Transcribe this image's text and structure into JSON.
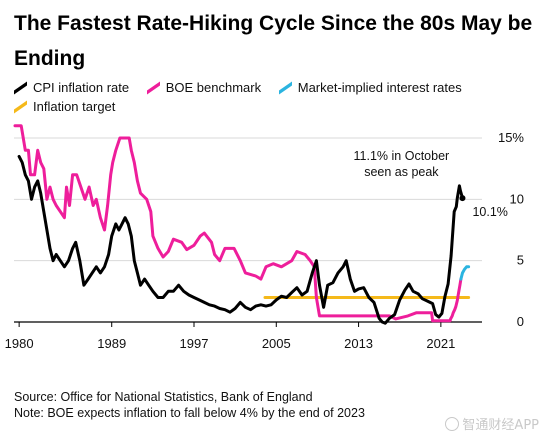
{
  "title": "The Fastest Rate-Hiking Cycle Since the 80s May be Ending",
  "legend": [
    {
      "label": "CPI inflation rate",
      "color": "#000000"
    },
    {
      "label": "BOE benchmark",
      "color": "#ee1e9b"
    },
    {
      "label": "Market-implied interest rates",
      "color": "#2bb4e0"
    },
    {
      "label": "Inflation target",
      "color": "#f5b91a"
    }
  ],
  "source": "Source: Office for National Statistics, Bank of England",
  "note": "Note: BOE expects inflation to fall below 4% by the end of 2023",
  "watermark": "智通财经APP",
  "chart_data": {
    "type": "line",
    "title": "The Fastest Rate-Hiking Cycle Since the 80s May be Ending",
    "xlabel": "",
    "ylabel": "",
    "xlim": [
      1979.5,
      2025
    ],
    "ylim": [
      0,
      15
    ],
    "x_ticks": [
      1980,
      1989,
      1997,
      2005,
      2013,
      2021
    ],
    "y_ticks": [
      0,
      5,
      10,
      15
    ],
    "y_tick_labels": [
      "0",
      "5",
      "10",
      "15%"
    ],
    "grid": "horizontal",
    "annotations": [
      {
        "text": "11.1% in October seen as peak",
        "x": 2022.8,
        "y": 11.1
      },
      {
        "text": "10.1%",
        "x": 2023.1,
        "y": 10.1
      }
    ],
    "series": [
      {
        "name": "CPI inflation rate",
        "color": "#000000",
        "points": [
          [
            1980,
            13.5
          ],
          [
            1980.3,
            13
          ],
          [
            1980.6,
            12
          ],
          [
            1980.9,
            11.5
          ],
          [
            1981.2,
            10
          ],
          [
            1981.5,
            11
          ],
          [
            1981.8,
            11.5
          ],
          [
            1982.1,
            10.5
          ],
          [
            1982.4,
            9
          ],
          [
            1982.7,
            7.5
          ],
          [
            1983,
            6
          ],
          [
            1983.3,
            5
          ],
          [
            1983.6,
            5.5
          ],
          [
            1984,
            5
          ],
          [
            1984.4,
            4.5
          ],
          [
            1984.8,
            5
          ],
          [
            1985.2,
            6
          ],
          [
            1985.5,
            6.5
          ],
          [
            1985.9,
            5
          ],
          [
            1986.3,
            3
          ],
          [
            1986.7,
            3.5
          ],
          [
            1987.1,
            4
          ],
          [
            1987.5,
            4.5
          ],
          [
            1987.9,
            4
          ],
          [
            1988.3,
            4.5
          ],
          [
            1988.7,
            5.5
          ],
          [
            1989,
            7
          ],
          [
            1989.4,
            8
          ],
          [
            1989.7,
            7.5
          ],
          [
            1990,
            8
          ],
          [
            1990.3,
            8.5
          ],
          [
            1990.6,
            8
          ],
          [
            1990.9,
            7
          ],
          [
            1991.2,
            5
          ],
          [
            1991.5,
            4
          ],
          [
            1991.8,
            3
          ],
          [
            1992.2,
            3.5
          ],
          [
            1992.6,
            3
          ],
          [
            1993,
            2.5
          ],
          [
            1993.5,
            2
          ],
          [
            1994,
            2
          ],
          [
            1994.5,
            2.5
          ],
          [
            1995,
            2.5
          ],
          [
            1995.5,
            3
          ],
          [
            1996,
            2.5
          ],
          [
            1996.5,
            2.2
          ],
          [
            1997,
            2
          ],
          [
            1997.5,
            1.8
          ],
          [
            1998,
            1.6
          ],
          [
            1998.5,
            1.4
          ],
          [
            1999,
            1.3
          ],
          [
            1999.5,
            1.1
          ],
          [
            2000,
            1.0
          ],
          [
            2000.5,
            0.8
          ],
          [
            2001,
            1.1
          ],
          [
            2001.5,
            1.6
          ],
          [
            2002,
            1.2
          ],
          [
            2002.5,
            1.0
          ],
          [
            2003,
            1.3
          ],
          [
            2003.5,
            1.4
          ],
          [
            2004,
            1.3
          ],
          [
            2004.5,
            1.4
          ],
          [
            2005,
            1.8
          ],
          [
            2005.5,
            2.1
          ],
          [
            2006,
            2.0
          ],
          [
            2006.5,
            2.4
          ],
          [
            2007,
            2.8
          ],
          [
            2007.5,
            2.2
          ],
          [
            2008,
            2.5
          ],
          [
            2008.5,
            4.0
          ],
          [
            2008.9,
            5.0
          ],
          [
            2009.2,
            3.0
          ],
          [
            2009.6,
            1.2
          ],
          [
            2010,
            3.0
          ],
          [
            2010.5,
            3.2
          ],
          [
            2011,
            4.0
          ],
          [
            2011.5,
            4.5
          ],
          [
            2011.8,
            5.0
          ],
          [
            2012.2,
            3.5
          ],
          [
            2012.6,
            2.5
          ],
          [
            2013,
            2.7
          ],
          [
            2013.5,
            2.8
          ],
          [
            2014,
            2.0
          ],
          [
            2014.5,
            1.6
          ],
          [
            2015,
            0.3
          ],
          [
            2015.3,
            0
          ],
          [
            2015.6,
            -0.1
          ],
          [
            2016,
            0.3
          ],
          [
            2016.5,
            0.6
          ],
          [
            2017,
            1.8
          ],
          [
            2017.5,
            2.6
          ],
          [
            2017.9,
            3.1
          ],
          [
            2018.3,
            2.5
          ],
          [
            2018.8,
            2.3
          ],
          [
            2019.2,
            1.9
          ],
          [
            2019.7,
            1.7
          ],
          [
            2020.2,
            1.5
          ],
          [
            2020.5,
            0.6
          ],
          [
            2020.8,
            0.4
          ],
          [
            2021.1,
            0.7
          ],
          [
            2021.4,
            2.1
          ],
          [
            2021.7,
            3.1
          ],
          [
            2022,
            5.4
          ],
          [
            2022.3,
            9.0
          ],
          [
            2022.5,
            9.4
          ],
          [
            2022.6,
            10.1
          ],
          [
            2022.8,
            11.1
          ],
          [
            2022.9,
            10.7
          ],
          [
            2023.1,
            10.1
          ]
        ]
      },
      {
        "name": "BOE benchmark",
        "color": "#ee1e9b",
        "points": [
          [
            1979.6,
            16
          ],
          [
            1980,
            16
          ],
          [
            1980.2,
            16
          ],
          [
            1980.6,
            14
          ],
          [
            1980.9,
            14
          ],
          [
            1981.1,
            12
          ],
          [
            1981.5,
            12
          ],
          [
            1981.8,
            14
          ],
          [
            1982.1,
            13
          ],
          [
            1982.4,
            12.5
          ],
          [
            1982.7,
            10
          ],
          [
            1983,
            11
          ],
          [
            1983.3,
            10
          ],
          [
            1983.6,
            9.5
          ],
          [
            1984,
            9
          ],
          [
            1984.4,
            8.5
          ],
          [
            1984.6,
            11
          ],
          [
            1984.9,
            9.5
          ],
          [
            1985.2,
            12
          ],
          [
            1985.6,
            12
          ],
          [
            1986,
            11
          ],
          [
            1986.4,
            10
          ],
          [
            1986.8,
            11
          ],
          [
            1987.2,
            9.5
          ],
          [
            1987.5,
            10
          ],
          [
            1987.9,
            8.5
          ],
          [
            1988.3,
            7.5
          ],
          [
            1988.6,
            9.5
          ],
          [
            1988.9,
            12
          ],
          [
            1989.1,
            13
          ],
          [
            1989.4,
            14
          ],
          [
            1989.8,
            15
          ],
          [
            1990.3,
            15
          ],
          [
            1990.7,
            15
          ],
          [
            1990.9,
            14
          ],
          [
            1991.2,
            13
          ],
          [
            1991.5,
            11.5
          ],
          [
            1991.8,
            10.5
          ],
          [
            1992.4,
            10
          ],
          [
            1992.8,
            9
          ],
          [
            1993,
            7
          ],
          [
            1993.5,
            6
          ],
          [
            1994,
            5.3
          ],
          [
            1994.5,
            5.75
          ],
          [
            1995,
            6.75
          ],
          [
            1995.8,
            6.5
          ],
          [
            1996.3,
            5.9
          ],
          [
            1997,
            6.25
          ],
          [
            1997.6,
            7
          ],
          [
            1998,
            7.25
          ],
          [
            1998.7,
            6.5
          ],
          [
            1999,
            5.5
          ],
          [
            1999.5,
            5
          ],
          [
            2000,
            6
          ],
          [
            2000.9,
            6
          ],
          [
            2001.5,
            5
          ],
          [
            2002,
            4
          ],
          [
            2003,
            3.75
          ],
          [
            2003.5,
            3.5
          ],
          [
            2004,
            4.5
          ],
          [
            2004.7,
            4.75
          ],
          [
            2005.5,
            4.5
          ],
          [
            2006.5,
            5
          ],
          [
            2007,
            5.75
          ],
          [
            2007.8,
            5.5
          ],
          [
            2008.3,
            5
          ],
          [
            2008.7,
            4.5
          ],
          [
            2008.9,
            2
          ],
          [
            2009.2,
            0.5
          ],
          [
            2010,
            0.5
          ],
          [
            2016,
            0.5
          ],
          [
            2016.6,
            0.25
          ],
          [
            2017.8,
            0.5
          ],
          [
            2018.6,
            0.75
          ],
          [
            2020.1,
            0.75
          ],
          [
            2020.2,
            0.1
          ],
          [
            2021.9,
            0.1
          ],
          [
            2021.95,
            0.25
          ],
          [
            2022.1,
            0.5
          ],
          [
            2022.2,
            0.75
          ],
          [
            2022.35,
            1.0
          ],
          [
            2022.45,
            1.25
          ],
          [
            2022.6,
            1.75
          ],
          [
            2022.7,
            2.25
          ],
          [
            2022.85,
            3.0
          ],
          [
            2022.95,
            3.5
          ]
        ]
      },
      {
        "name": "Market-implied interest rates",
        "color": "#2bb4e0",
        "points": [
          [
            2022.95,
            3.5
          ],
          [
            2023.1,
            4.0
          ],
          [
            2023.3,
            4.3
          ],
          [
            2023.5,
            4.5
          ],
          [
            2023.7,
            4.5
          ]
        ]
      },
      {
        "name": "Inflation target",
        "color": "#f5b91a",
        "points": [
          [
            2003.9,
            2
          ],
          [
            2023.7,
            2
          ]
        ]
      }
    ]
  }
}
